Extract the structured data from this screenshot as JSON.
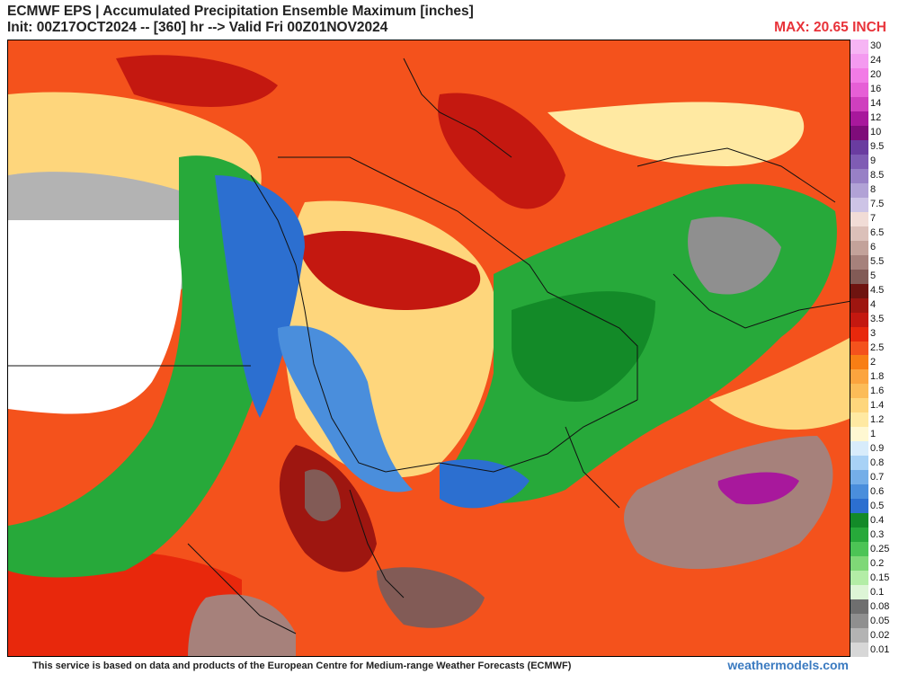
{
  "header": {
    "title": "ECMWF EPS | Accumulated Precipitation Ensemble Maximum [inches]",
    "subtitle": "Init: 00Z17OCT2024 -- [360] hr --> Valid Fri 00Z01NOV2024",
    "max_label": "MAX: 20.65 INCH"
  },
  "legend": {
    "levels": [
      {
        "label": "30",
        "color": "#f6b5f4"
      },
      {
        "label": "24",
        "color": "#f49af0"
      },
      {
        "label": "20",
        "color": "#f27be6"
      },
      {
        "label": "16",
        "color": "#e65fd6"
      },
      {
        "label": "14",
        "color": "#cf3fbe"
      },
      {
        "label": "12",
        "color": "#a8189c"
      },
      {
        "label": "10",
        "color": "#7f0c7a"
      },
      {
        "label": "9.5",
        "color": "#6a3ca0"
      },
      {
        "label": "9",
        "color": "#7f5cb4"
      },
      {
        "label": "8.5",
        "color": "#9880c6"
      },
      {
        "label": "8",
        "color": "#b1a2d6"
      },
      {
        "label": "7.5",
        "color": "#cdc4e6"
      },
      {
        "label": "7",
        "color": "#f1dcd6"
      },
      {
        "label": "6.5",
        "color": "#dbc0b9"
      },
      {
        "label": "6",
        "color": "#c3a29a"
      },
      {
        "label": "5.5",
        "color": "#a6817b"
      },
      {
        "label": "5",
        "color": "#825b56"
      },
      {
        "label": "4.5",
        "color": "#6f1410"
      },
      {
        "label": "4",
        "color": "#9e1610"
      },
      {
        "label": "3.5",
        "color": "#c41810"
      },
      {
        "label": "3",
        "color": "#e8280c"
      },
      {
        "label": "2.5",
        "color": "#f4521c"
      },
      {
        "label": "2",
        "color": "#f87e14"
      },
      {
        "label": "1.8",
        "color": "#fca43e"
      },
      {
        "label": "1.6",
        "color": "#fcbc58"
      },
      {
        "label": "1.4",
        "color": "#fed67c"
      },
      {
        "label": "1.2",
        "color": "#ffe9a2"
      },
      {
        "label": "1",
        "color": "#fff8d2"
      },
      {
        "label": "0.9",
        "color": "#d8ecfb"
      },
      {
        "label": "0.8",
        "color": "#a8d2f6"
      },
      {
        "label": "0.7",
        "color": "#74aee8"
      },
      {
        "label": "0.6",
        "color": "#4a8edc"
      },
      {
        "label": "0.5",
        "color": "#2c6fd0"
      },
      {
        "label": "0.4",
        "color": "#138a28"
      },
      {
        "label": "0.3",
        "color": "#27a93a"
      },
      {
        "label": "0.25",
        "color": "#4cc455"
      },
      {
        "label": "0.2",
        "color": "#7fd877"
      },
      {
        "label": "0.15",
        "color": "#b3eda6"
      },
      {
        "label": "0.1",
        "color": "#ddf5d6"
      },
      {
        "label": "0.08",
        "color": "#6f6f6f"
      },
      {
        "label": "0.05",
        "color": "#8f8f8f"
      },
      {
        "label": "0.02",
        "color": "#b3b3b3"
      },
      {
        "label": "0.01",
        "color": "#d7d7d7"
      }
    ]
  },
  "footer": {
    "disclaimer": "This service is based on data and products of the European Centre for Medium-range Weather Forecasts (ECMWF)",
    "brand": "weathermodels.com"
  }
}
